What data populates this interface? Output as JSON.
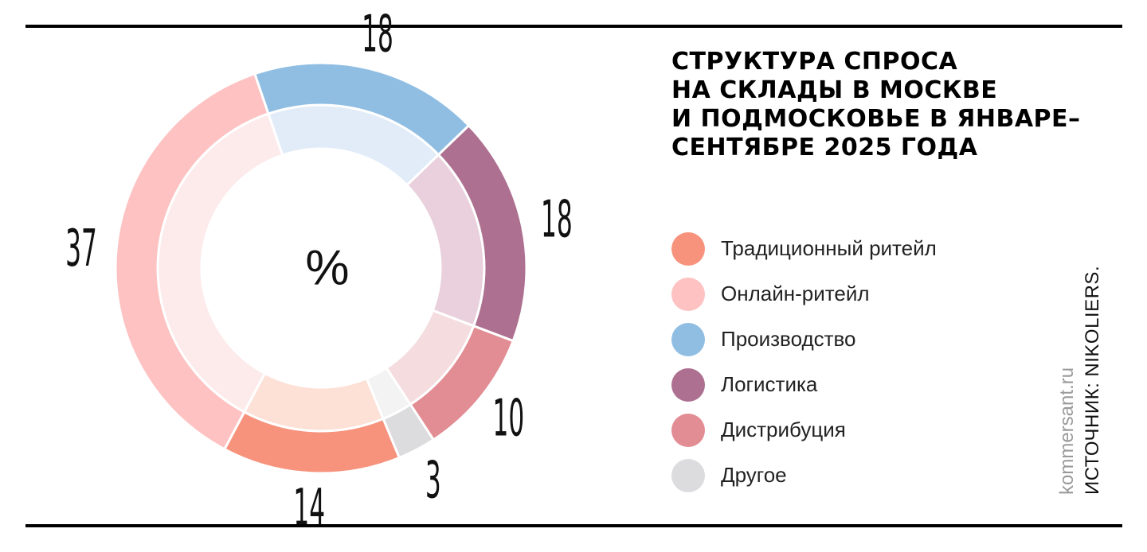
{
  "title": "СТРУКТУРА СПРОСА\nНА СКЛАДЫ В МОСКВЕ\nИ ПОДМОСКОВЬЕ В ЯНВАРЕ–\nСЕНТЯБРЕ 2025 ГОДА",
  "site": "kommersant.ru",
  "source": "ИСТОЧНИК: NIKOLIERS.",
  "chart_data": {
    "type": "pie",
    "title": "СТРУКТУРА СПРОСА НА СКЛАДЫ В МОСКВЕ И ПОДМОСКОВЬЕ В ЯНВАРЕ–СЕНТЯБРЕ 2025 ГОДА",
    "unit": "%",
    "legend_position": "right",
    "categories": [
      "Традиционный ритейл",
      "Онлайн-ритейл",
      "Производство",
      "Логистика",
      "Дистрибуция",
      "Другое"
    ],
    "values": [
      14,
      37,
      18,
      18,
      10,
      3
    ],
    "value_labels": [
      "14",
      "37",
      "18",
      "18",
      "10",
      "3"
    ],
    "colors": [
      "#F7937C",
      "#FDC2C1",
      "#90BEE3",
      "#AD7090",
      "#E28C93",
      "#DCDCDE"
    ],
    "inner_colors": [
      "#FDE0D6",
      "#FDEBEB",
      "#E1ECF8",
      "#E9D0DC",
      "#F4DCDF",
      "#F3F3F4"
    ]
  }
}
